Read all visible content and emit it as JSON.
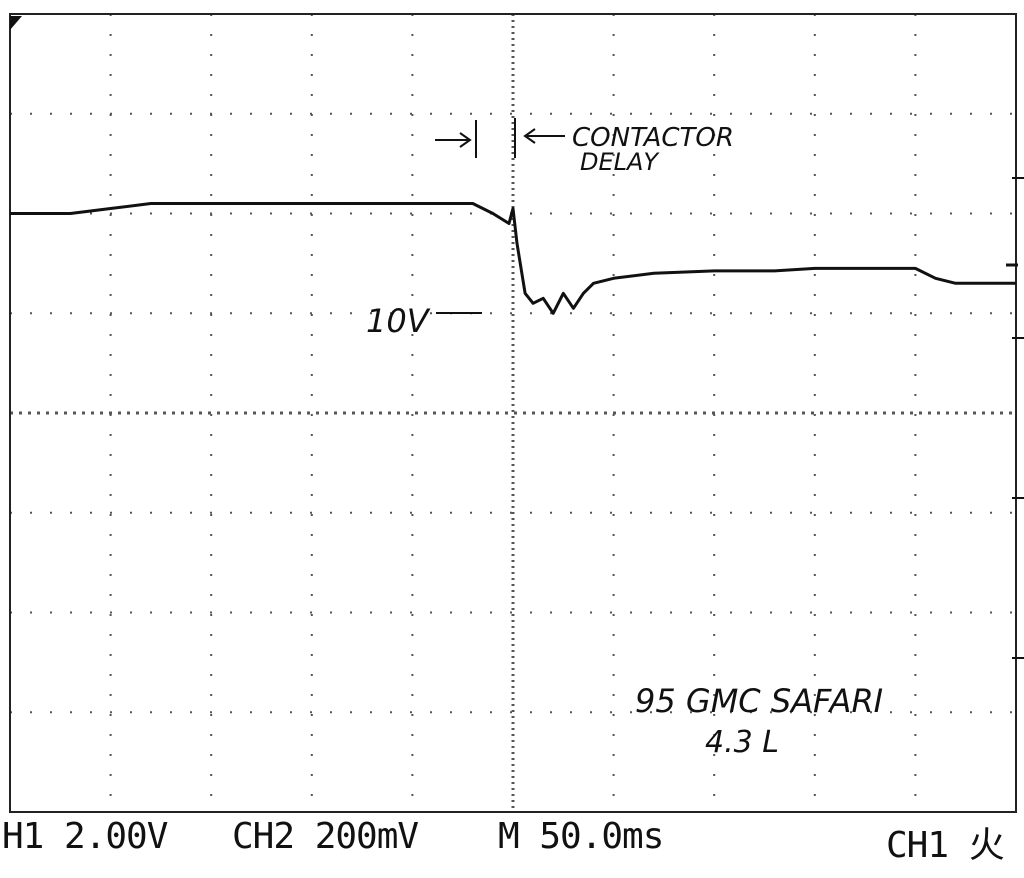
{
  "chart_data": {
    "type": "line",
    "title": "",
    "xlabel": "",
    "ylabel": "",
    "grid": true,
    "x_unit": "ms",
    "y_unit": "V",
    "xlim": [
      0,
      500
    ],
    "ylim": [
      0,
      16
    ],
    "x": [
      0,
      10,
      30,
      50,
      70,
      100,
      150,
      200,
      230,
      240,
      248,
      250,
      252,
      256,
      260,
      265,
      270,
      275,
      280,
      285,
      290,
      300,
      320,
      350,
      380,
      400,
      420,
      440,
      450,
      460,
      470,
      480,
      490,
      500
    ],
    "series": [
      {
        "values": [
          12.0,
          12.0,
          12.0,
          12.1,
          12.2,
          12.2,
          12.2,
          12.2,
          12.2,
          12.0,
          11.8,
          12.1,
          11.4,
          10.4,
          10.2,
          10.3,
          10.0,
          10.4,
          10.1,
          10.4,
          10.6,
          10.7,
          10.8,
          10.85,
          10.85,
          10.9,
          10.9,
          10.9,
          10.9,
          10.7,
          10.6,
          10.6,
          10.6,
          10.6
        ]
      }
    ]
  },
  "status_bar": {
    "ch1": "H1  2.00V",
    "ch2": "CH2  200mV",
    "timebase": "M 50.0ms",
    "trigger": "CH1 ⽕"
  },
  "annotations": {
    "contactor": "CONTACTOR",
    "delay": "DELAY",
    "level": "10V",
    "vehicle": "95 GMC SAFARI",
    "engine": "4.3 L"
  },
  "colors": {
    "trace": "#111111",
    "grid": "#555555",
    "background": "#ffffff"
  }
}
